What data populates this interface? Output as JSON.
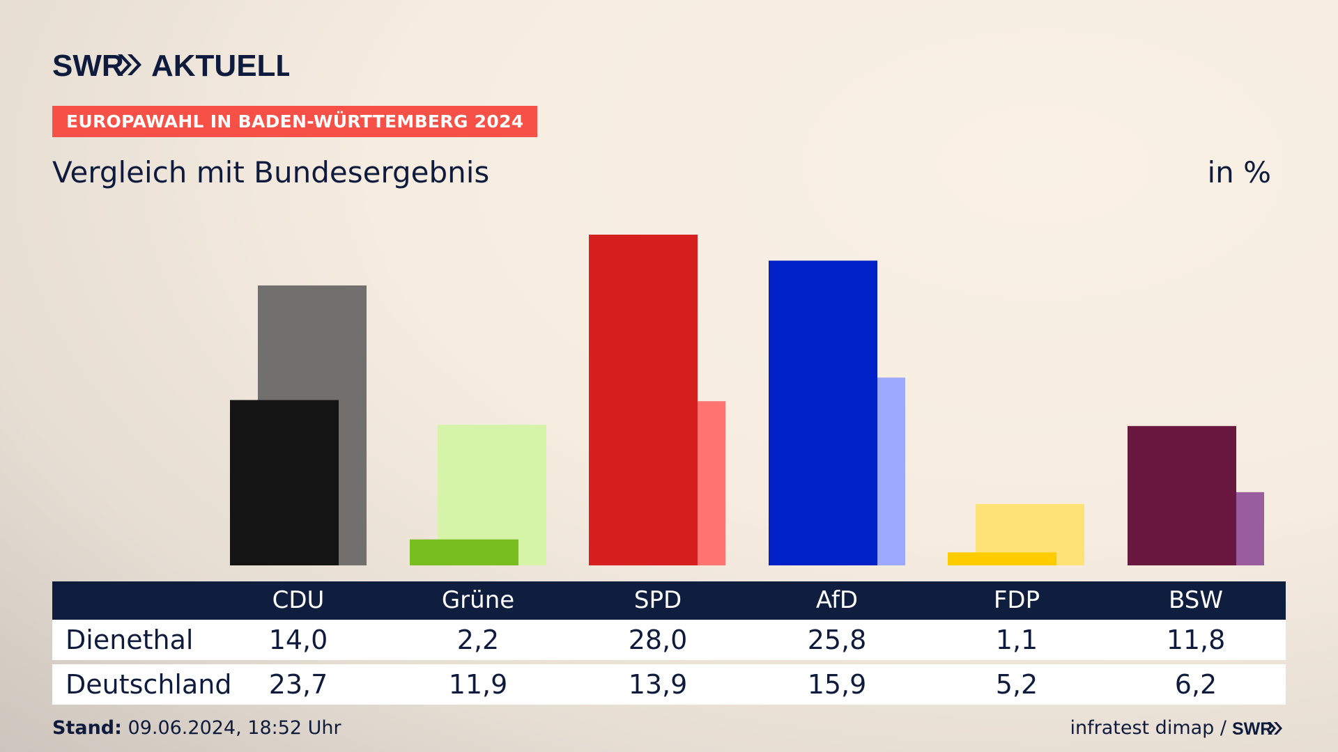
{
  "brand": {
    "logo_text": "SWR AKTUELL",
    "footer_logo_text": "SWR"
  },
  "header": {
    "kicker": "EUROPAWAHL IN BADEN-WÜRTTEMBERG 2024",
    "title": "Vergleich mit Bundesergebnis",
    "unit": "in %"
  },
  "chart_data": {
    "type": "bar",
    "title": "Vergleich mit Bundesergebnis",
    "ylabel": "in %",
    "ylim": [
      0,
      28
    ],
    "grid": false,
    "categories": [
      "CDU",
      "Grüne",
      "SPD",
      "AfD",
      "FDP",
      "BSW"
    ],
    "series": [
      {
        "name": "Dienethal",
        "values": [
          14.0,
          2.2,
          28.0,
          25.8,
          1.1,
          11.8
        ],
        "colors": [
          "#141414",
          "#78be1e",
          "#d61f1f",
          "#0021c8",
          "#ffcc00",
          "#6a1840"
        ]
      },
      {
        "name": "Deutschland",
        "values": [
          23.7,
          11.9,
          13.9,
          15.9,
          5.2,
          6.2
        ],
        "colors": [
          "#72706e",
          "#d6f4a8",
          "#ff7470",
          "#9da9ff",
          "#ffe275",
          "#9a5d9d"
        ]
      }
    ]
  },
  "table": {
    "headers": [
      "CDU",
      "Grüne",
      "SPD",
      "AfD",
      "FDP",
      "BSW"
    ],
    "rows": [
      {
        "label": "Dienethal",
        "values": [
          "14,0",
          "2,2",
          "28,0",
          "25,8",
          "1,1",
          "11,8"
        ]
      },
      {
        "label": "Deutschland",
        "values": [
          "23,7",
          "11,9",
          "13,9",
          "15,9",
          "5,2",
          "6,2"
        ]
      }
    ]
  },
  "footer": {
    "stand_label": "Stand:",
    "stand_value": "09.06.2024, 18:52 Uhr",
    "source": "infratest dimap /"
  }
}
